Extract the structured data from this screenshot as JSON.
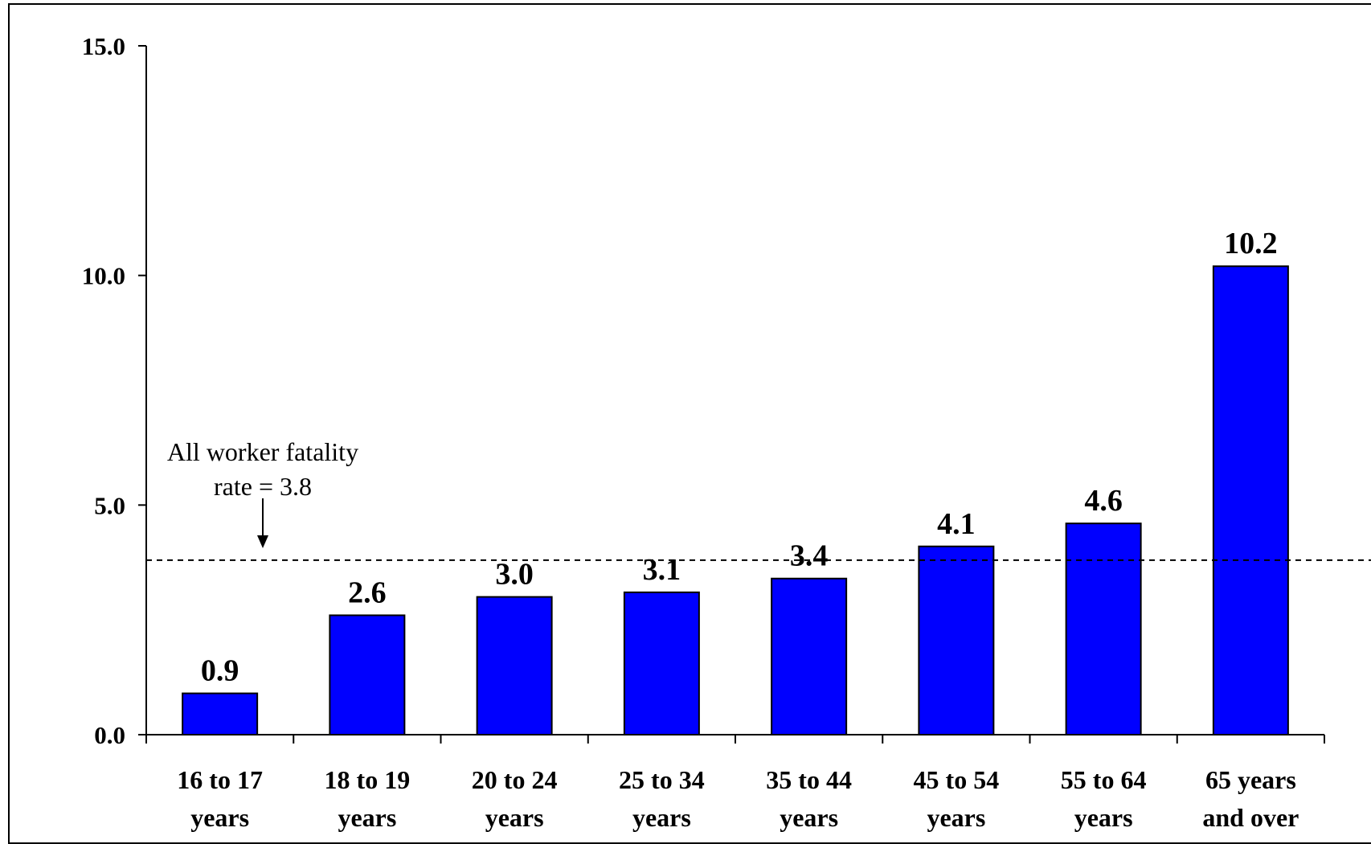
{
  "chart_data": {
    "type": "bar",
    "categories": [
      [
        "16 to 17",
        "years"
      ],
      [
        "18 to 19",
        "years"
      ],
      [
        "20 to 24",
        "years"
      ],
      [
        "25 to 34",
        "years"
      ],
      [
        "35 to 44",
        "years"
      ],
      [
        "45 to 54",
        "years"
      ],
      [
        "55 to 64",
        "years"
      ],
      [
        "65 years",
        "and over"
      ]
    ],
    "values": [
      0.9,
      2.6,
      3.0,
      3.1,
      3.4,
      4.1,
      4.6,
      10.2
    ],
    "value_labels": [
      "0.9",
      "2.6",
      "3.0",
      "3.1",
      "3.4",
      "4.1",
      "4.6",
      "10.2"
    ],
    "ylim": [
      0,
      15
    ],
    "yticks": [
      0,
      5,
      10,
      15
    ],
    "ytick_labels": [
      "0.0",
      "5.0",
      "10.0",
      "15.0"
    ],
    "bar_color": "#0000ff",
    "reference_line": {
      "value": 3.8,
      "style": "dashed",
      "label_lines": [
        "All worker fatality",
        "rate = 3.8"
      ]
    },
    "grid": false,
    "legend": "none"
  }
}
